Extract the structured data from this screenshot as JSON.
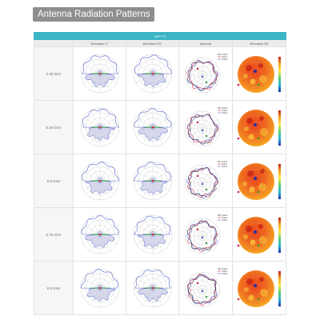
{
  "header": {
    "title": "Antenna Radiation Patterns"
  },
  "table": {
    "band": "EAP772",
    "columns": [
      "",
      "Elevation 0°",
      "Elevation 90°",
      "Azimuth",
      "Elevation 3D"
    ],
    "rows": [
      {
        "frequency": "2.45 GHz"
      },
      {
        "frequency": "5.25 GHz"
      },
      {
        "frequency": "5.5 GHz"
      },
      {
        "frequency": "5.75 GHz"
      },
      {
        "frequency": "6.5 GHz"
      }
    ]
  },
  "legend": [
    "Chain0",
    "Chain1",
    "Chain2"
  ],
  "colors": {
    "band": "#3bb4c5",
    "title_badge": "#8e8e8e",
    "elevation_trace": "#5566cc",
    "elevation_fill": "#c9cbe6",
    "azimuth_chain0": "#1a1a1a",
    "azimuth_chain1": "#cc2244",
    "azimuth_chain2": "#5566cc",
    "heatmap_hot": "#e8421c",
    "heatmap_warm": "#f5a623"
  }
}
